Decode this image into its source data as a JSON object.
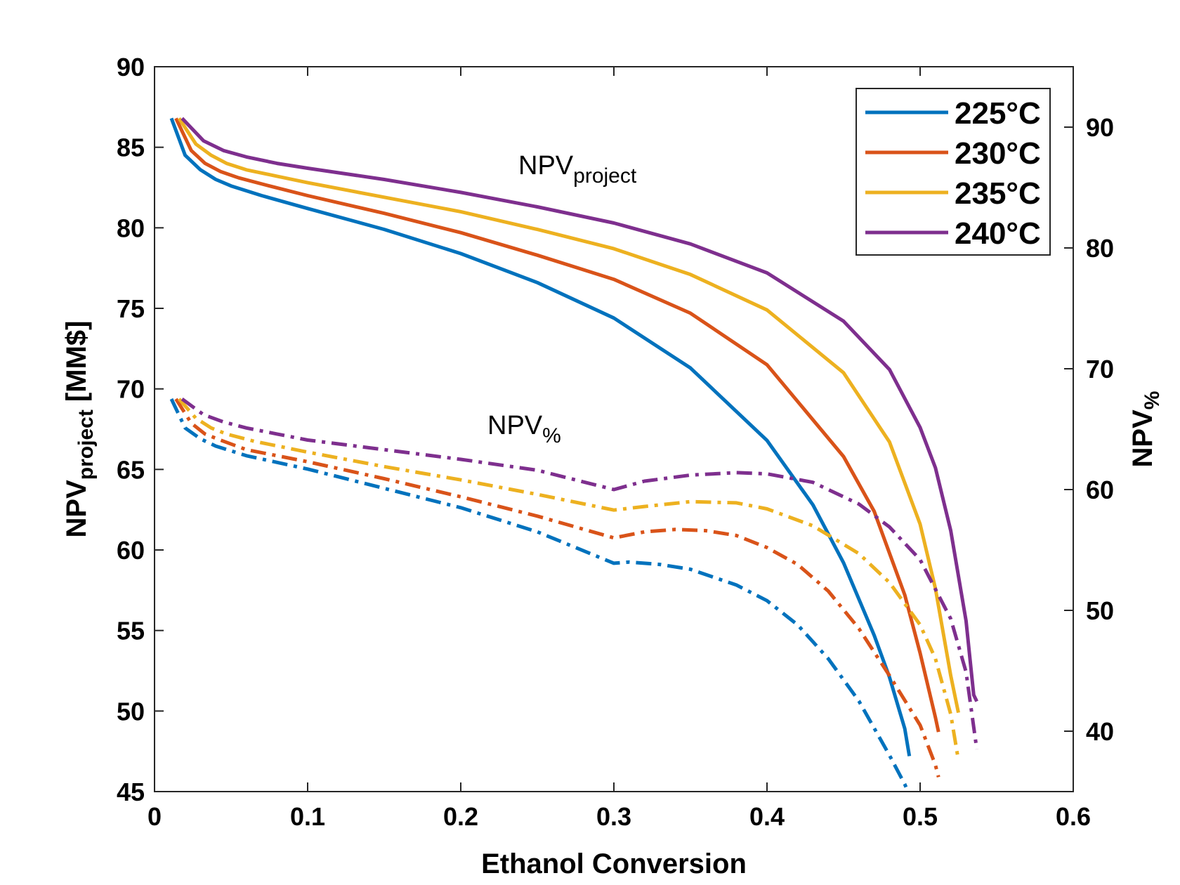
{
  "chart_data": {
    "type": "line",
    "xlabel": "Ethanol Conversion",
    "ylabel": {
      "main": "NPV",
      "sub": "project",
      "unit": " [MM$]"
    },
    "y2label": {
      "main": "NPV",
      "sub": "%"
    },
    "xlim": [
      0,
      0.6
    ],
    "ylim": [
      45,
      90
    ],
    "y2lim": [
      35,
      95
    ],
    "xticks": [
      0,
      0.1,
      0.2,
      0.3,
      0.4,
      0.5,
      0.6
    ],
    "xtick_labels": [
      "0",
      "0.1",
      "0.2",
      "0.3",
      "0.4",
      "0.5",
      "0.6"
    ],
    "yticks": [
      45,
      50,
      55,
      60,
      65,
      70,
      75,
      80,
      85,
      90
    ],
    "ytick_labels": [
      "45",
      "50",
      "55",
      "60",
      "65",
      "70",
      "75",
      "80",
      "85",
      "90"
    ],
    "y2ticks": [
      40,
      50,
      60,
      70,
      80,
      90
    ],
    "y2tick_labels": [
      "40",
      "50",
      "60",
      "70",
      "80",
      "90"
    ],
    "grid": false,
    "legend_position": "top-right",
    "annotations": [
      {
        "main": "NPV",
        "sub": "project"
      },
      {
        "main": "NPV",
        "sub": "%"
      }
    ],
    "series": [
      {
        "name": "225°C",
        "color": "#0072BD",
        "axis": "left",
        "style": "solid",
        "x": [
          0.011,
          0.02,
          0.03,
          0.04,
          0.05,
          0.07,
          0.1,
          0.15,
          0.2,
          0.25,
          0.3,
          0.35,
          0.4,
          0.43,
          0.45,
          0.47,
          0.48,
          0.49,
          0.493
        ],
        "y": [
          86.8,
          84.5,
          83.6,
          83.0,
          82.6,
          82.0,
          81.2,
          79.9,
          78.4,
          76.6,
          74.4,
          71.3,
          66.8,
          62.8,
          59.2,
          54.7,
          52.1,
          48.9,
          47.2
        ]
      },
      {
        "name": "230°C",
        "color": "#D95319",
        "axis": "left",
        "style": "solid",
        "x": [
          0.014,
          0.024,
          0.033,
          0.043,
          0.055,
          0.075,
          0.1,
          0.15,
          0.2,
          0.25,
          0.3,
          0.35,
          0.4,
          0.45,
          0.47,
          0.49,
          0.5,
          0.51,
          0.512
        ],
        "y": [
          86.8,
          84.8,
          84.0,
          83.5,
          83.1,
          82.6,
          82.0,
          80.9,
          79.7,
          78.3,
          76.8,
          74.7,
          71.5,
          65.8,
          62.4,
          57.2,
          53.6,
          49.6,
          48.7
        ]
      },
      {
        "name": "235°C",
        "color": "#EDB120",
        "axis": "left",
        "style": "solid",
        "x": [
          0.016,
          0.027,
          0.037,
          0.047,
          0.06,
          0.08,
          0.1,
          0.15,
          0.2,
          0.25,
          0.3,
          0.35,
          0.4,
          0.45,
          0.48,
          0.5,
          0.51,
          0.52,
          0.525
        ],
        "y": [
          86.8,
          85.2,
          84.5,
          84.0,
          83.6,
          83.2,
          82.8,
          81.9,
          81.0,
          79.9,
          78.7,
          77.1,
          74.9,
          71.0,
          66.7,
          61.6,
          57.6,
          52.2,
          49.9
        ]
      },
      {
        "name": "240°C",
        "color": "#7E2F8E",
        "axis": "left",
        "style": "solid",
        "x": [
          0.018,
          0.032,
          0.045,
          0.06,
          0.08,
          0.1,
          0.15,
          0.2,
          0.25,
          0.3,
          0.35,
          0.4,
          0.45,
          0.48,
          0.5,
          0.51,
          0.52,
          0.53,
          0.535,
          0.537
        ],
        "y": [
          86.8,
          85.4,
          84.8,
          84.4,
          84.0,
          83.7,
          83.0,
          82.2,
          81.3,
          80.3,
          79.0,
          77.2,
          74.2,
          71.2,
          67.6,
          65.1,
          61.2,
          55.6,
          51.0,
          50.6
        ]
      },
      {
        "name": "225°C",
        "color": "#0072BD",
        "axis": "right",
        "style": "dashdot",
        "x": [
          0.011,
          0.02,
          0.03,
          0.04,
          0.06,
          0.1,
          0.15,
          0.2,
          0.25,
          0.3,
          0.31,
          0.33,
          0.35,
          0.38,
          0.4,
          0.42,
          0.44,
          0.46,
          0.48,
          0.49,
          0.492
        ],
        "y": [
          67.5,
          65.1,
          64.2,
          63.6,
          62.8,
          61.7,
          60.1,
          58.5,
          56.5,
          53.9,
          54.0,
          53.8,
          53.4,
          52.1,
          50.8,
          48.8,
          46.0,
          42.5,
          38.0,
          35.6,
          35.0
        ]
      },
      {
        "name": "230°C",
        "color": "#D95319",
        "axis": "right",
        "style": "dashdot",
        "x": [
          0.014,
          0.024,
          0.033,
          0.043,
          0.06,
          0.1,
          0.15,
          0.2,
          0.25,
          0.3,
          0.32,
          0.34,
          0.36,
          0.38,
          0.4,
          0.42,
          0.44,
          0.46,
          0.48,
          0.5,
          0.51,
          0.512
        ],
        "y": [
          67.5,
          65.5,
          64.6,
          64.1,
          63.3,
          62.3,
          60.9,
          59.4,
          57.8,
          56.0,
          56.5,
          56.7,
          56.6,
          56.2,
          55.2,
          53.8,
          51.6,
          48.5,
          44.6,
          40.5,
          37.2,
          36.2
        ]
      },
      {
        "name": "235°C",
        "color": "#EDB120",
        "axis": "right",
        "style": "dashdot",
        "x": [
          0.016,
          0.027,
          0.037,
          0.047,
          0.065,
          0.1,
          0.15,
          0.2,
          0.25,
          0.3,
          0.32,
          0.35,
          0.38,
          0.4,
          0.43,
          0.46,
          0.48,
          0.5,
          0.51,
          0.52,
          0.525
        ],
        "y": [
          67.5,
          65.9,
          65.1,
          64.6,
          64.0,
          63.1,
          61.9,
          60.8,
          59.6,
          58.3,
          58.6,
          59.0,
          58.9,
          58.4,
          57.0,
          54.7,
          52.3,
          48.8,
          46.0,
          41.4,
          37.6
        ]
      },
      {
        "name": "240°C",
        "color": "#7E2F8E",
        "axis": "right",
        "style": "dashdot",
        "x": [
          0.018,
          0.032,
          0.045,
          0.06,
          0.08,
          0.1,
          0.15,
          0.2,
          0.25,
          0.3,
          0.32,
          0.35,
          0.38,
          0.4,
          0.43,
          0.46,
          0.48,
          0.5,
          0.52,
          0.53,
          0.537
        ],
        "y": [
          67.5,
          66.2,
          65.6,
          65.1,
          64.6,
          64.1,
          63.3,
          62.5,
          61.6,
          60.0,
          60.7,
          61.2,
          61.4,
          61.3,
          60.6,
          58.8,
          56.9,
          54.2,
          49.3,
          44.9,
          38.5
        ]
      }
    ]
  }
}
